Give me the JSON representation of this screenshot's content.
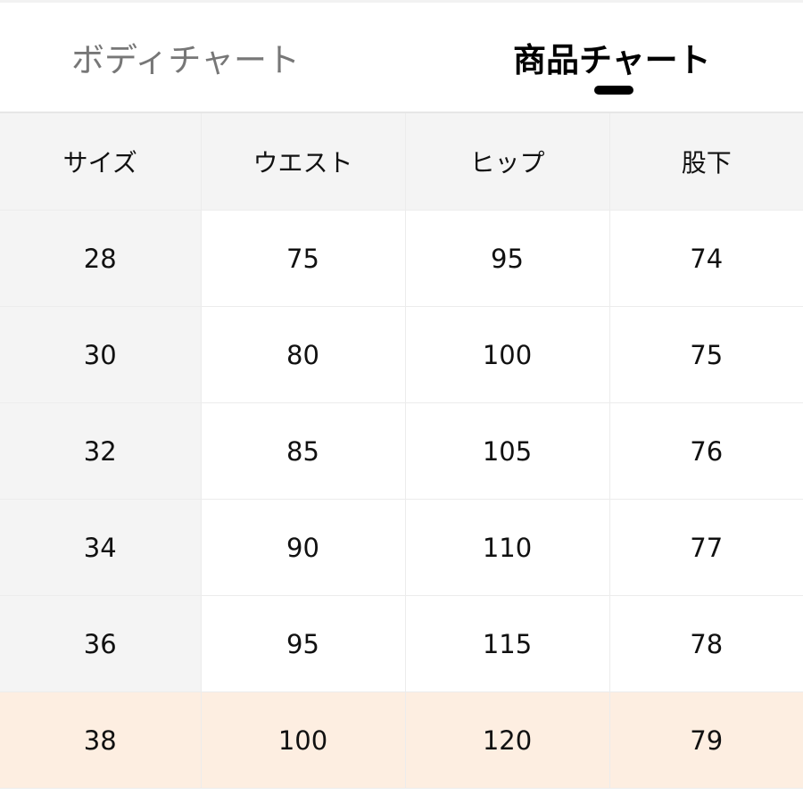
{
  "tabs": [
    {
      "label": "ボディチャート",
      "active": false
    },
    {
      "label": "商品チャート",
      "active": true
    }
  ],
  "table": {
    "headers": [
      "サイズ",
      "ウエスト",
      "ヒップ",
      "股下"
    ],
    "rows": [
      [
        "28",
        "75",
        "95",
        "74"
      ],
      [
        "30",
        "80",
        "100",
        "75"
      ],
      [
        "32",
        "85",
        "105",
        "76"
      ],
      [
        "34",
        "90",
        "110",
        "77"
      ],
      [
        "36",
        "95",
        "115",
        "78"
      ],
      [
        "38",
        "100",
        "120",
        "79"
      ]
    ],
    "highlighted_row": "38"
  },
  "colors": {
    "highlight": "#fdeee1",
    "header_bg": "#f4f4f4",
    "active_indicator": "#000000"
  }
}
